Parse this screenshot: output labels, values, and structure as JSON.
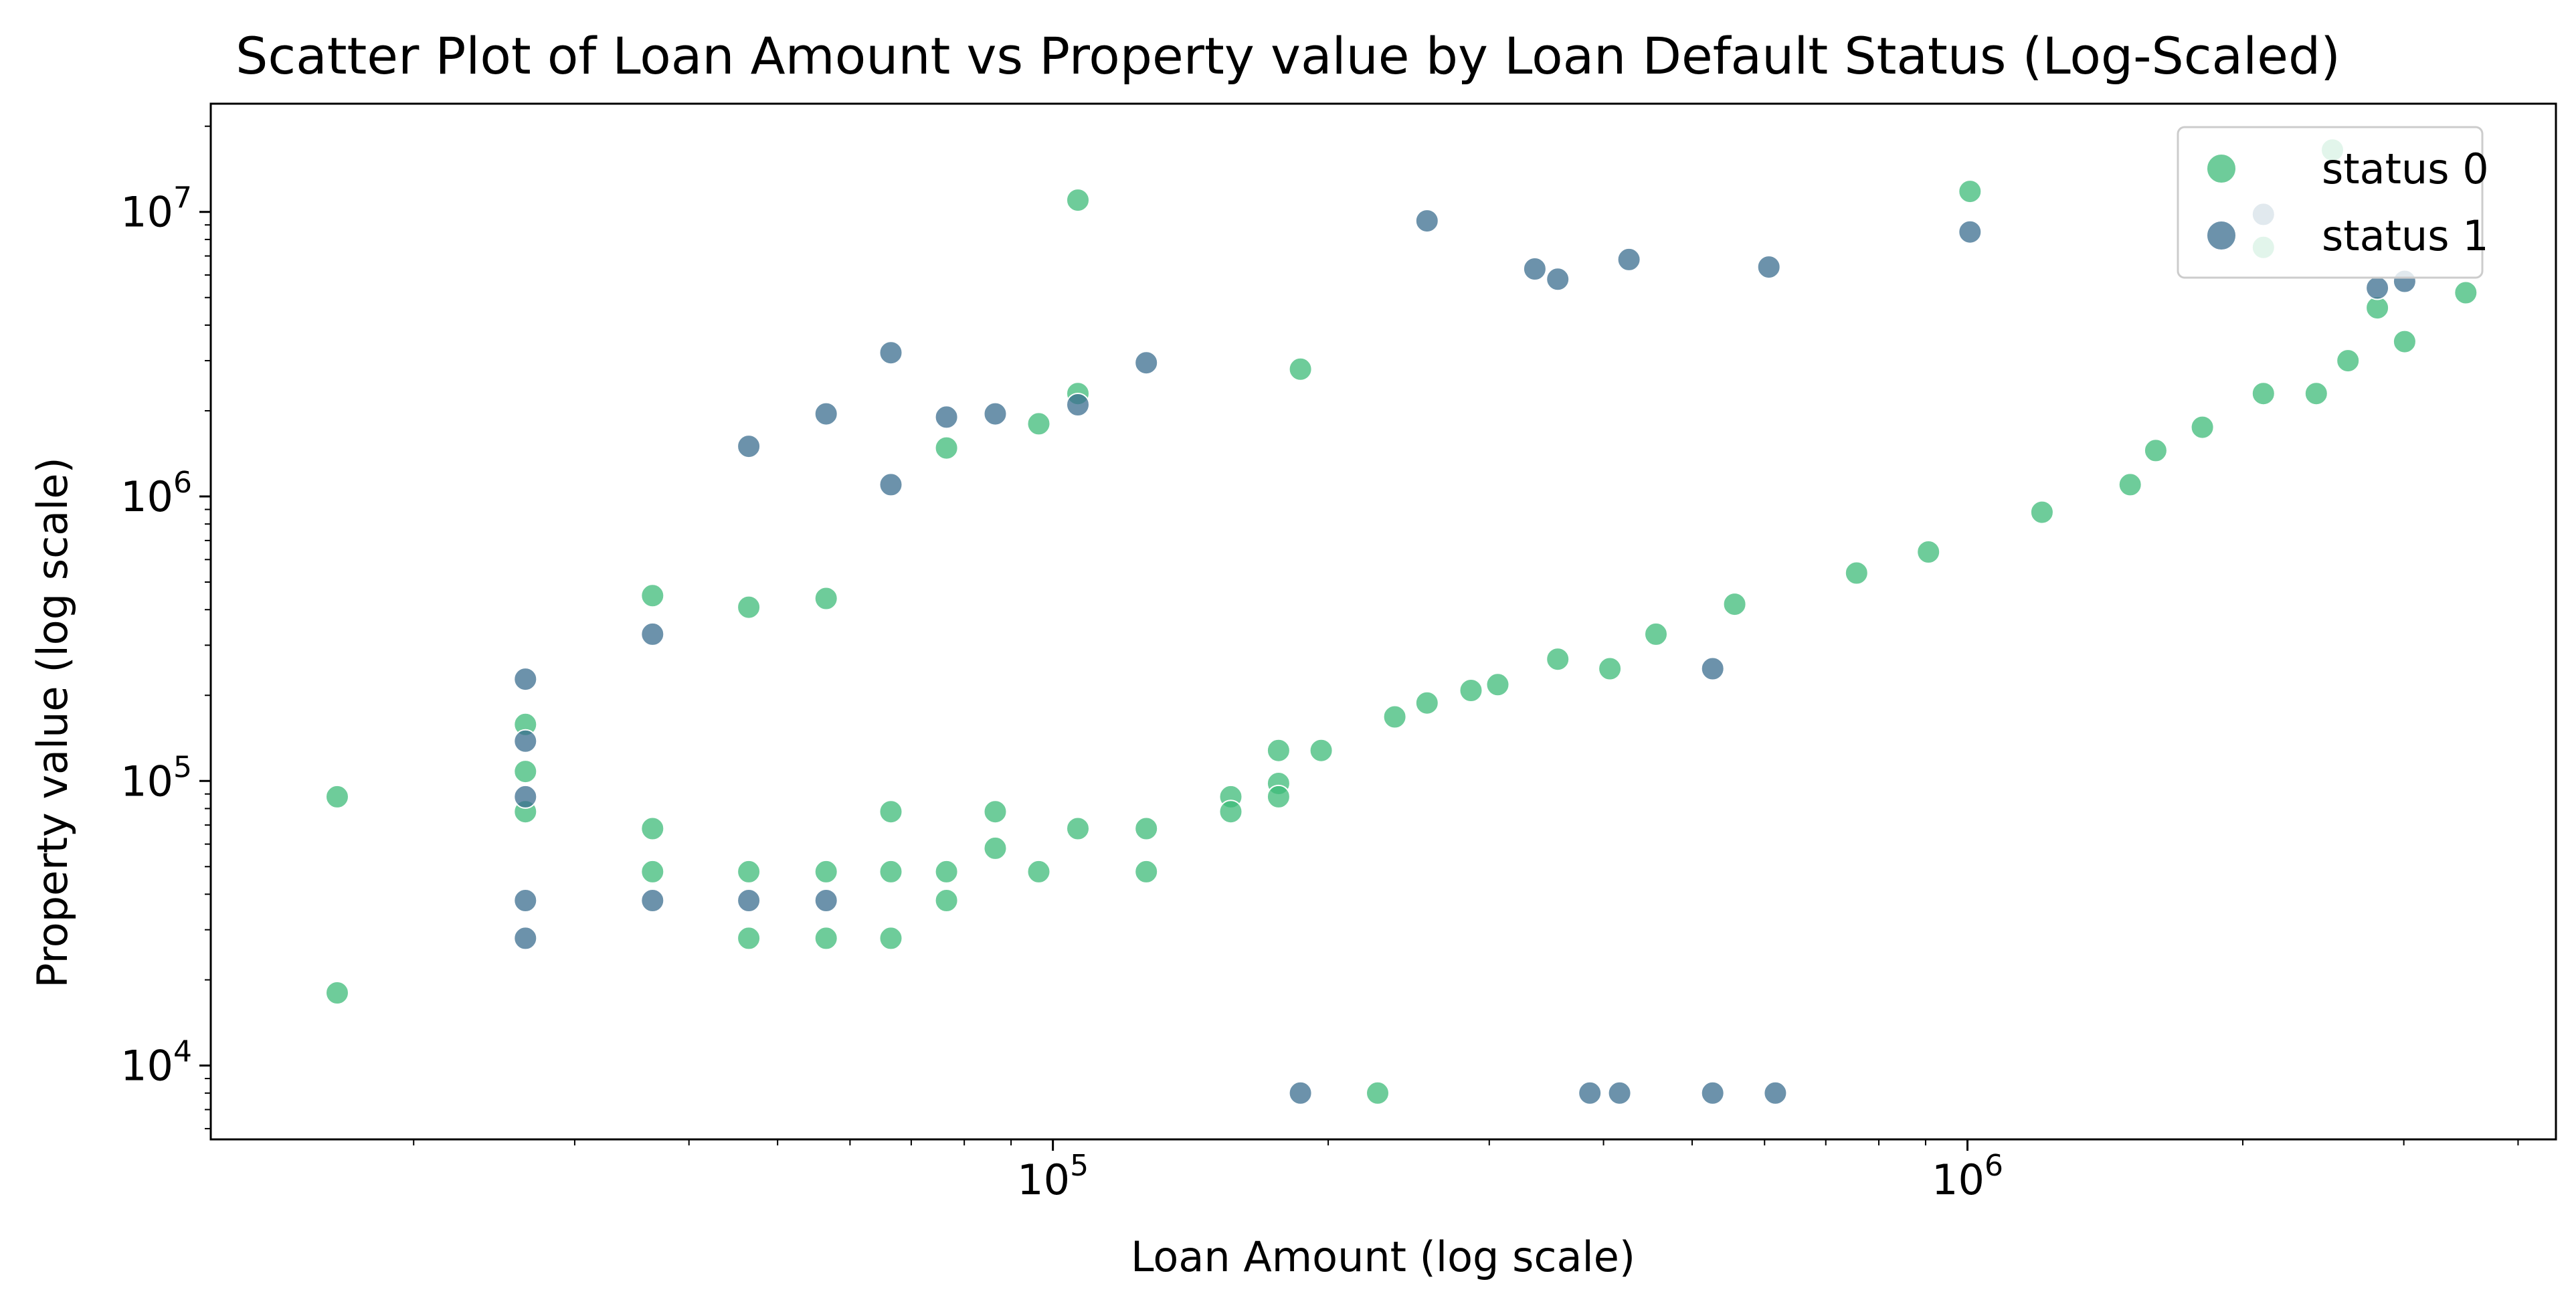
{
  "chart_data": {
    "type": "scatter",
    "title": "Scatter Plot of Loan Amount vs Property value by Loan Default Status (Log-Scaled)",
    "xlabel": "Loan Amount (log scale)",
    "ylabel": "Property value (log scale)",
    "xscale": "log",
    "yscale": "log",
    "xlim": [
      12000,
      4400000
    ],
    "ylim": [
      5500,
      24000000
    ],
    "x_ticks": [
      {
        "base": "10",
        "exp": "5",
        "value": 100000
      },
      {
        "base": "10",
        "exp": "6",
        "value": 1000000
      }
    ],
    "y_ticks": [
      {
        "base": "10",
        "exp": "4",
        "value": 10000
      },
      {
        "base": "10",
        "exp": "5",
        "value": 100000
      },
      {
        "base": "10",
        "exp": "6",
        "value": 1000000
      },
      {
        "base": "10",
        "exp": "7",
        "value": 10000000
      }
    ],
    "grid": false,
    "legend_position": "top-right",
    "series": [
      {
        "name": "status 0",
        "color": "#3dbb78",
        "points": [
          [
            16500,
            88000
          ],
          [
            16500,
            18000
          ],
          [
            26500,
            158000
          ],
          [
            26500,
            108000
          ],
          [
            26500,
            78000
          ],
          [
            36500,
            448000
          ],
          [
            36500,
            68000
          ],
          [
            36500,
            48000
          ],
          [
            46500,
            408000
          ],
          [
            46500,
            48000
          ],
          [
            46500,
            28000
          ],
          [
            56500,
            438000
          ],
          [
            56500,
            48000
          ],
          [
            56500,
            28000
          ],
          [
            66500,
            78000
          ],
          [
            66500,
            48000
          ],
          [
            66500,
            28000
          ],
          [
            76500,
            1480000
          ],
          [
            76500,
            48000
          ],
          [
            76500,
            38000
          ],
          [
            86500,
            78000
          ],
          [
            86500,
            58000
          ],
          [
            96500,
            48000
          ],
          [
            96500,
            1800000
          ],
          [
            106500,
            11000000
          ],
          [
            106500,
            2300000
          ],
          [
            106500,
            68000
          ],
          [
            126500,
            48000
          ],
          [
            126500,
            68000
          ],
          [
            156500,
            88000
          ],
          [
            156500,
            78000
          ],
          [
            176500,
            128000
          ],
          [
            176500,
            98000
          ],
          [
            176500,
            88000
          ],
          [
            186500,
            2800000
          ],
          [
            196500,
            128000
          ],
          [
            226500,
            8000
          ],
          [
            236500,
            168000
          ],
          [
            256500,
            188000
          ],
          [
            286500,
            208000
          ],
          [
            306500,
            218000
          ],
          [
            356500,
            268000
          ],
          [
            406500,
            248000
          ],
          [
            456500,
            328000
          ],
          [
            556500,
            418000
          ],
          [
            756500,
            538000
          ],
          [
            906500,
            638000
          ],
          [
            1006500,
            11800000
          ],
          [
            1206500,
            880000
          ],
          [
            1506500,
            1100000
          ],
          [
            1606500,
            1450000
          ],
          [
            1806500,
            1750000
          ],
          [
            2106500,
            2300000
          ],
          [
            2406500,
            2300000
          ],
          [
            2606500,
            3000000
          ],
          [
            3006500,
            3500000
          ],
          [
            3506500,
            5200000
          ],
          [
            2506500,
            16500000
          ],
          [
            2106500,
            7500000
          ],
          [
            2806500,
            4600000
          ]
        ]
      },
      {
        "name": "status 1",
        "color": "#3b6e8f",
        "points": [
          [
            26500,
            228000
          ],
          [
            26500,
            138000
          ],
          [
            26500,
            88000
          ],
          [
            26500,
            38000
          ],
          [
            26500,
            28000
          ],
          [
            36500,
            328000
          ],
          [
            36500,
            38000
          ],
          [
            46500,
            1500000
          ],
          [
            46500,
            38000
          ],
          [
            56500,
            1950000
          ],
          [
            56500,
            38000
          ],
          [
            66500,
            3200000
          ],
          [
            66500,
            1100000
          ],
          [
            76500,
            1900000
          ],
          [
            86500,
            1950000
          ],
          [
            106500,
            2100000
          ],
          [
            126500,
            2950000
          ],
          [
            186500,
            8000
          ],
          [
            256500,
            9300000
          ],
          [
            336500,
            6300000
          ],
          [
            356500,
            5800000
          ],
          [
            426500,
            6800000
          ],
          [
            386500,
            8000
          ],
          [
            416500,
            8000
          ],
          [
            526500,
            8000
          ],
          [
            616500,
            8000
          ],
          [
            526500,
            248000
          ],
          [
            606500,
            6400000
          ],
          [
            1006500,
            8500000
          ],
          [
            2106500,
            9800000
          ],
          [
            3006500,
            5700000
          ],
          [
            2806500,
            5400000
          ]
        ]
      }
    ]
  }
}
